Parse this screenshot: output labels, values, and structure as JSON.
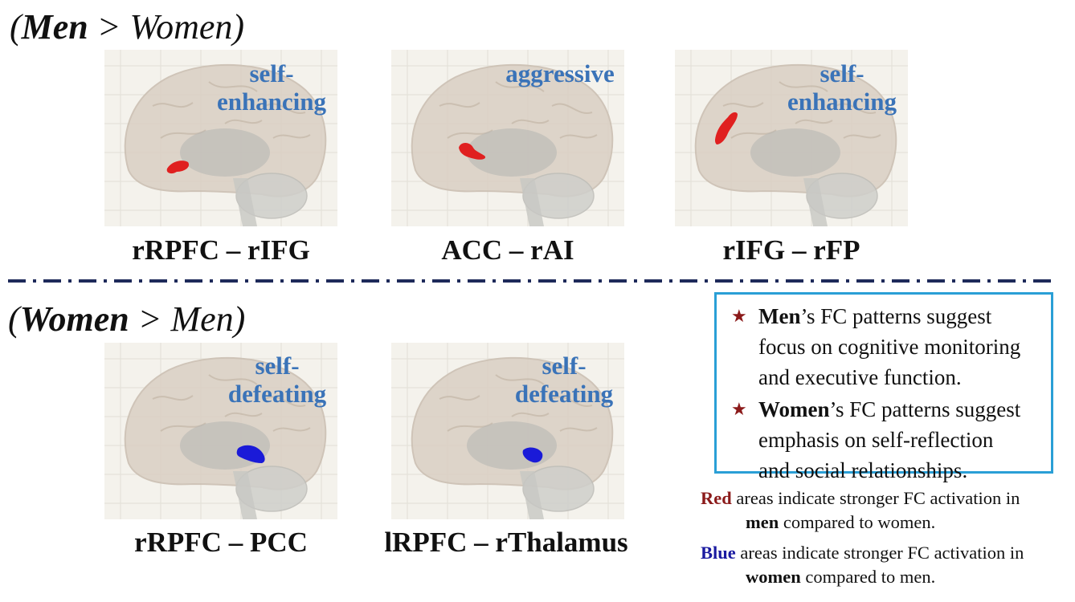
{
  "headings": {
    "top": {
      "strong": "Men",
      "rest": " > Women)",
      "open": "("
    },
    "bottom": {
      "strong": "Women",
      "rest": " > Men)",
      "open": "("
    }
  },
  "panels": [
    {
      "region": "rRPFC – rIFG",
      "tag_line1": "self-",
      "tag_line2": "enhancing",
      "blob_color": "#e02020",
      "blob_shape": "temporal"
    },
    {
      "region": "ACC – rAI",
      "tag_line1": "aggressive",
      "tag_line2": "",
      "blob_color": "#e02020",
      "blob_shape": "insula"
    },
    {
      "region": "rIFG – rFP",
      "tag_line1": "self-",
      "tag_line2": "enhancing",
      "blob_color": "#e02020",
      "blob_shape": "frontal"
    },
    {
      "region": "rRPFC – PCC",
      "tag_line1": "self-",
      "tag_line2": "defeating",
      "blob_color": "#1a1ad8",
      "blob_shape": "cingulate"
    },
    {
      "region": "lRPFC – rThalamus",
      "tag_line1": "self-",
      "tag_line2": "defeating",
      "blob_color": "#1a1ad8",
      "blob_shape": "thalamus"
    }
  ],
  "summary": [
    {
      "strong": "Men",
      "line1": "’s FC patterns suggest",
      "line2": "focus on cognitive monitoring",
      "line3": "and executive function."
    },
    {
      "strong": "Women",
      "line1": "’s FC patterns suggest",
      "line2": "emphasis on self-reflection",
      "line3": "and social relationships."
    }
  ],
  "notes": {
    "red": {
      "color_word": "Red",
      "text1": " areas indicate stronger FC activation in",
      "strong": "men",
      "text2": " compared to women."
    },
    "blue": {
      "color_word": "Blue",
      "text1": " areas indicate stronger FC activation in",
      "strong": "women",
      "text2": " compared to men."
    }
  },
  "colors": {
    "tag": "#3a73b8",
    "box_border": "#2a9fd6",
    "red": "#8b1a1a",
    "blue": "#1a1aa0",
    "divider": "#1e2a5a"
  }
}
